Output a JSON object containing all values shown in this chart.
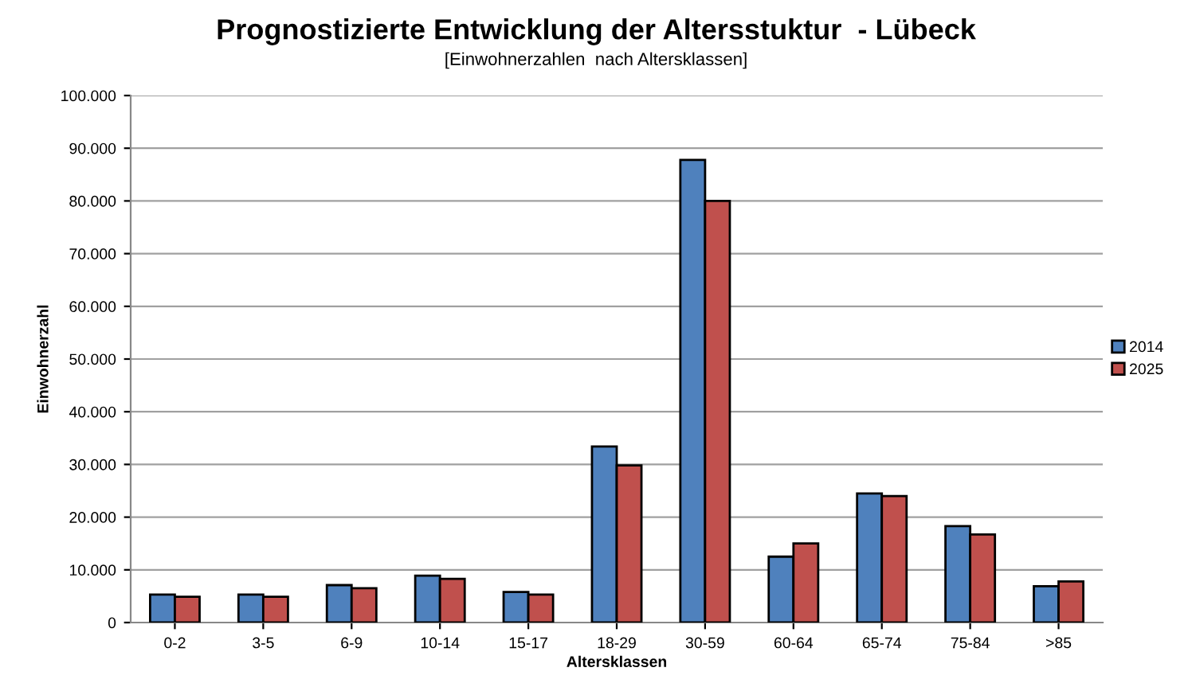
{
  "chart_data": {
    "type": "bar",
    "title": "Prognostizierte Entwicklung der Altersstuktur  - Lübeck",
    "subtitle": "[Einwohnerzahlen  nach Altersklassen]",
    "xlabel": "Altersklassen",
    "ylabel": "Einwohnerzahl",
    "categories": [
      "0-2",
      "3-5",
      "6-9",
      "10-14",
      "15-17",
      "18-29",
      "30-59",
      "60-64",
      "65-74",
      "75-84",
      ">85"
    ],
    "series": [
      {
        "name": "2014",
        "color": "#4f81bd",
        "values": [
          5300,
          5300,
          7100,
          8900,
          5800,
          33400,
          87800,
          12500,
          24500,
          18300,
          6900
        ]
      },
      {
        "name": "2025",
        "color": "#c0504d",
        "values": [
          4900,
          4900,
          6500,
          8300,
          5300,
          29800,
          80000,
          15000,
          24000,
          16700,
          7800
        ]
      }
    ],
    "ylim": [
      0,
      100000
    ],
    "yticks": [
      0,
      {
        "value": 10000,
        "label": "10.000"
      },
      {
        "value": 20000,
        "label": "20.000"
      },
      {
        "value": 30000,
        "label": "30.000"
      },
      {
        "value": 40000,
        "label": "40.000"
      },
      {
        "value": 50000,
        "label": "50.000"
      },
      {
        "value": 60000,
        "label": "60.000"
      },
      {
        "value": 70000,
        "label": "70.000"
      },
      {
        "value": 80000,
        "label": "80.000"
      },
      {
        "value": 90000,
        "label": "90.000"
      },
      {
        "value": 100000,
        "label": "100.000"
      }
    ],
    "grid": "y",
    "legend": "right"
  }
}
